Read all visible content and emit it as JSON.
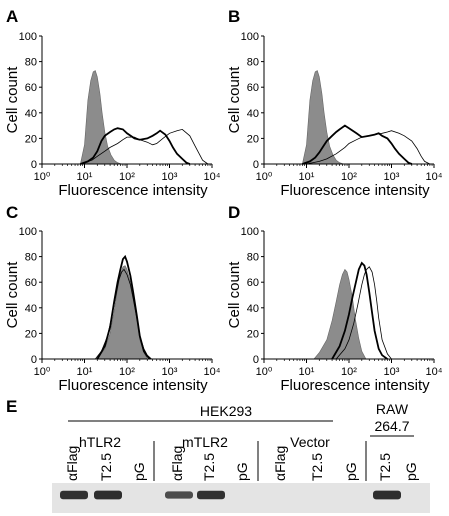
{
  "figure": {
    "panel_letters": [
      "A",
      "B",
      "C",
      "D"
    ],
    "blot_panel_letter": "E"
  },
  "chart_data": [
    {
      "panel": "A",
      "type": "area",
      "xlabel": "Fluorescence intensity",
      "ylabel": "Cell count",
      "xscale": "log",
      "xlim": [
        1,
        10000
      ],
      "ylim": [
        0,
        100
      ],
      "xticks": [
        1,
        10,
        100,
        1000,
        10000
      ],
      "yticks": [
        0,
        20,
        40,
        60,
        80,
        100
      ],
      "grid": false,
      "series": [
        {
          "style": "filled-gray",
          "x": [
            8,
            10,
            12,
            14,
            16,
            18,
            20,
            23,
            26,
            30,
            35,
            42,
            50,
            60,
            75
          ],
          "y": [
            0,
            15,
            50,
            65,
            72,
            73,
            68,
            55,
            40,
            25,
            14,
            7,
            3,
            1,
            0
          ]
        },
        {
          "style": "thick-black",
          "x": [
            8,
            12,
            16,
            20,
            25,
            30,
            40,
            50,
            60,
            80,
            100,
            150,
            200,
            300,
            400,
            500,
            600,
            800,
            1000,
            1200,
            1500,
            2000,
            2500,
            3000
          ],
          "y": [
            0,
            2,
            5,
            10,
            18,
            22,
            25,
            27,
            28,
            27,
            24,
            20,
            19,
            20,
            22,
            24,
            26,
            23,
            18,
            13,
            8,
            4,
            1,
            0
          ]
        },
        {
          "style": "thin-black",
          "x": [
            8,
            15,
            20,
            30,
            40,
            60,
            80,
            100,
            150,
            200,
            300,
            400,
            500,
            700,
            1000,
            1500,
            2000,
            3000,
            4000,
            5000,
            6000,
            8000
          ],
          "y": [
            0,
            3,
            6,
            10,
            13,
            16,
            19,
            21,
            21,
            19,
            17,
            15,
            16,
            20,
            24,
            26,
            27,
            22,
            14,
            8,
            3,
            0
          ]
        }
      ]
    },
    {
      "panel": "B",
      "type": "area",
      "xlabel": "Fluorescence intensity",
      "ylabel": "Cell count",
      "xscale": "log",
      "xlim": [
        1,
        10000
      ],
      "ylim": [
        0,
        100
      ],
      "xticks": [
        1,
        10,
        100,
        1000,
        10000
      ],
      "yticks": [
        0,
        20,
        40,
        60,
        80,
        100
      ],
      "grid": false,
      "series": [
        {
          "style": "filled-gray",
          "x": [
            8,
            10,
            12,
            14,
            16,
            18,
            20,
            23,
            26,
            30,
            35,
            42,
            50,
            60,
            75
          ],
          "y": [
            0,
            15,
            50,
            65,
            72,
            73,
            68,
            55,
            40,
            25,
            14,
            7,
            3,
            1,
            0
          ]
        },
        {
          "style": "thick-black",
          "x": [
            8,
            12,
            16,
            20,
            25,
            30,
            40,
            50,
            60,
            80,
            100,
            150,
            200,
            300,
            400,
            500,
            600,
            800,
            1000,
            1200,
            1500,
            2000,
            2500,
            3000
          ],
          "y": [
            0,
            2,
            5,
            9,
            14,
            18,
            22,
            25,
            27,
            30,
            28,
            24,
            21,
            22,
            23,
            24,
            22,
            20,
            16,
            12,
            8,
            4,
            1,
            0
          ]
        },
        {
          "style": "thin-black",
          "x": [
            10,
            20,
            30,
            50,
            80,
            100,
            150,
            200,
            300,
            400,
            600,
            800,
            1000,
            1500,
            2000,
            3000,
            4000,
            5000,
            6000,
            8000
          ],
          "y": [
            0,
            2,
            4,
            8,
            13,
            16,
            19,
            21,
            22,
            23,
            24,
            25,
            26,
            24,
            22,
            18,
            12,
            6,
            2,
            0
          ]
        }
      ]
    },
    {
      "panel": "C",
      "type": "area",
      "xlabel": "Fluorescence intensity",
      "ylabel": "Cell count",
      "xscale": "log",
      "xlim": [
        1,
        10000
      ],
      "ylim": [
        0,
        100
      ],
      "xticks": [
        1,
        10,
        100,
        1000,
        10000
      ],
      "yticks": [
        0,
        20,
        40,
        60,
        80,
        100
      ],
      "grid": false,
      "series": [
        {
          "style": "filled-gray",
          "x": [
            20,
            30,
            40,
            50,
            60,
            70,
            80,
            90,
            100,
            120,
            140,
            170,
            200,
            250,
            300
          ],
          "y": [
            0,
            8,
            20,
            38,
            55,
            66,
            72,
            73,
            70,
            60,
            48,
            30,
            15,
            5,
            0
          ]
        },
        {
          "style": "thick-black",
          "x": [
            20,
            30,
            40,
            50,
            60,
            70,
            80,
            90,
            100,
            120,
            140,
            170,
            200,
            250,
            300,
            350
          ],
          "y": [
            0,
            10,
            25,
            45,
            60,
            70,
            78,
            80,
            76,
            65,
            52,
            34,
            18,
            6,
            2,
            0
          ]
        },
        {
          "style": "thin-black",
          "x": [
            18,
            25,
            35,
            45,
            55,
            65,
            75,
            85,
            100,
            120,
            140,
            170,
            200,
            250,
            300,
            380
          ],
          "y": [
            0,
            6,
            18,
            35,
            50,
            62,
            68,
            70,
            66,
            58,
            47,
            32,
            18,
            8,
            3,
            0
          ]
        }
      ]
    },
    {
      "panel": "D",
      "type": "area",
      "xlabel": "Fluorescence intensity",
      "ylabel": "Cell count",
      "xscale": "log",
      "xlim": [
        1,
        10000
      ],
      "ylim": [
        0,
        100
      ],
      "xticks": [
        1,
        10,
        100,
        1000,
        10000
      ],
      "yticks": [
        0,
        20,
        40,
        60,
        80,
        100
      ],
      "grid": false,
      "series": [
        {
          "style": "filled-gray",
          "x": [
            15,
            20,
            30,
            40,
            50,
            60,
            70,
            80,
            90,
            100,
            120,
            140,
            170,
            200,
            250
          ],
          "y": [
            0,
            5,
            15,
            30,
            45,
            58,
            66,
            70,
            68,
            62,
            48,
            32,
            16,
            6,
            0
          ]
        },
        {
          "style": "thick-black",
          "x": [
            40,
            60,
            80,
            100,
            120,
            150,
            170,
            200,
            230,
            260,
            300,
            350,
            400,
            500,
            600,
            800
          ],
          "y": [
            0,
            10,
            22,
            35,
            48,
            62,
            70,
            75,
            73,
            66,
            52,
            36,
            22,
            8,
            3,
            0
          ]
        },
        {
          "style": "thin-black",
          "x": [
            50,
            80,
            100,
            130,
            160,
            200,
            230,
            260,
            300,
            350,
            400,
            450,
            500,
            600,
            800,
            1000
          ],
          "y": [
            0,
            8,
            15,
            28,
            42,
            58,
            66,
            70,
            72,
            68,
            58,
            45,
            32,
            15,
            4,
            0
          ]
        }
      ]
    }
  ],
  "blot": {
    "group_label": "HEK293",
    "raw_label_line1": "RAW",
    "raw_label_line2": "264.7",
    "groups": [
      {
        "name": "hTLR2",
        "lanes": [
          "αFlag",
          "T2.5",
          "pG"
        ],
        "band_intensity": [
          0.9,
          0.95,
          0.0
        ]
      },
      {
        "name": "mTLR2",
        "lanes": [
          "αFlag",
          "T2.5",
          "pG"
        ],
        "band_intensity": [
          0.6,
          0.9,
          0.0
        ]
      },
      {
        "name": "Vector",
        "lanes": [
          "αFlag",
          "T2.5",
          "pG"
        ],
        "band_intensity": [
          0.0,
          0.0,
          0.0
        ]
      },
      {
        "name": "",
        "lanes": [
          "T2.5",
          "pG"
        ],
        "band_intensity": [
          0.95,
          0.0
        ]
      }
    ]
  }
}
